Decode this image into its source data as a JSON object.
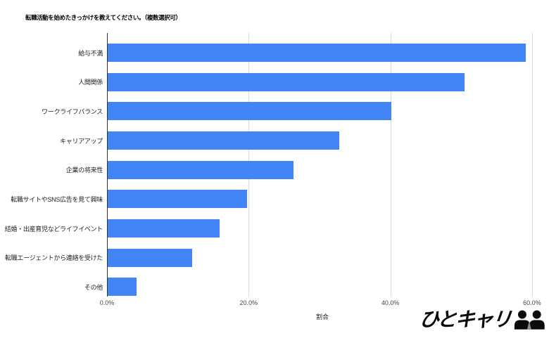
{
  "chart_data": {
    "type": "bar",
    "orientation": "horizontal",
    "title": "転職活動を始めたきっかけを教えてください。（複数選択可）",
    "categories": [
      "給与不満",
      "人間関係",
      "ワークライフバランス",
      "キャリアアップ",
      "企業の将来性",
      "転職サイトやSNS広告を見て興味",
      "結婚・出産育児などライフイベント",
      "転職エージェントから連絡を受けた",
      "その他"
    ],
    "values": [
      59.0,
      50.4,
      40.0,
      32.7,
      26.2,
      19.7,
      15.8,
      11.9,
      4.1
    ],
    "xlabel": "割合",
    "ylabel": "",
    "xlim": [
      0,
      60.9
    ],
    "x_ticks": [
      {
        "value": 0,
        "label": "0.0%"
      },
      {
        "value": 20,
        "label": "20.0%"
      },
      {
        "value": 40,
        "label": "40.0%"
      },
      {
        "value": 60,
        "label": "60.0%"
      }
    ],
    "grid": true,
    "legend": "none",
    "bar_color": "#4285f4",
    "gridline_color": "#d9d9d9",
    "baseline_color": "#333333"
  },
  "logo": {
    "text": "ひとキャリ",
    "icon": "two-people-silhouette",
    "tie_color": "#8f8f8f",
    "color": "#0b0b0b"
  }
}
